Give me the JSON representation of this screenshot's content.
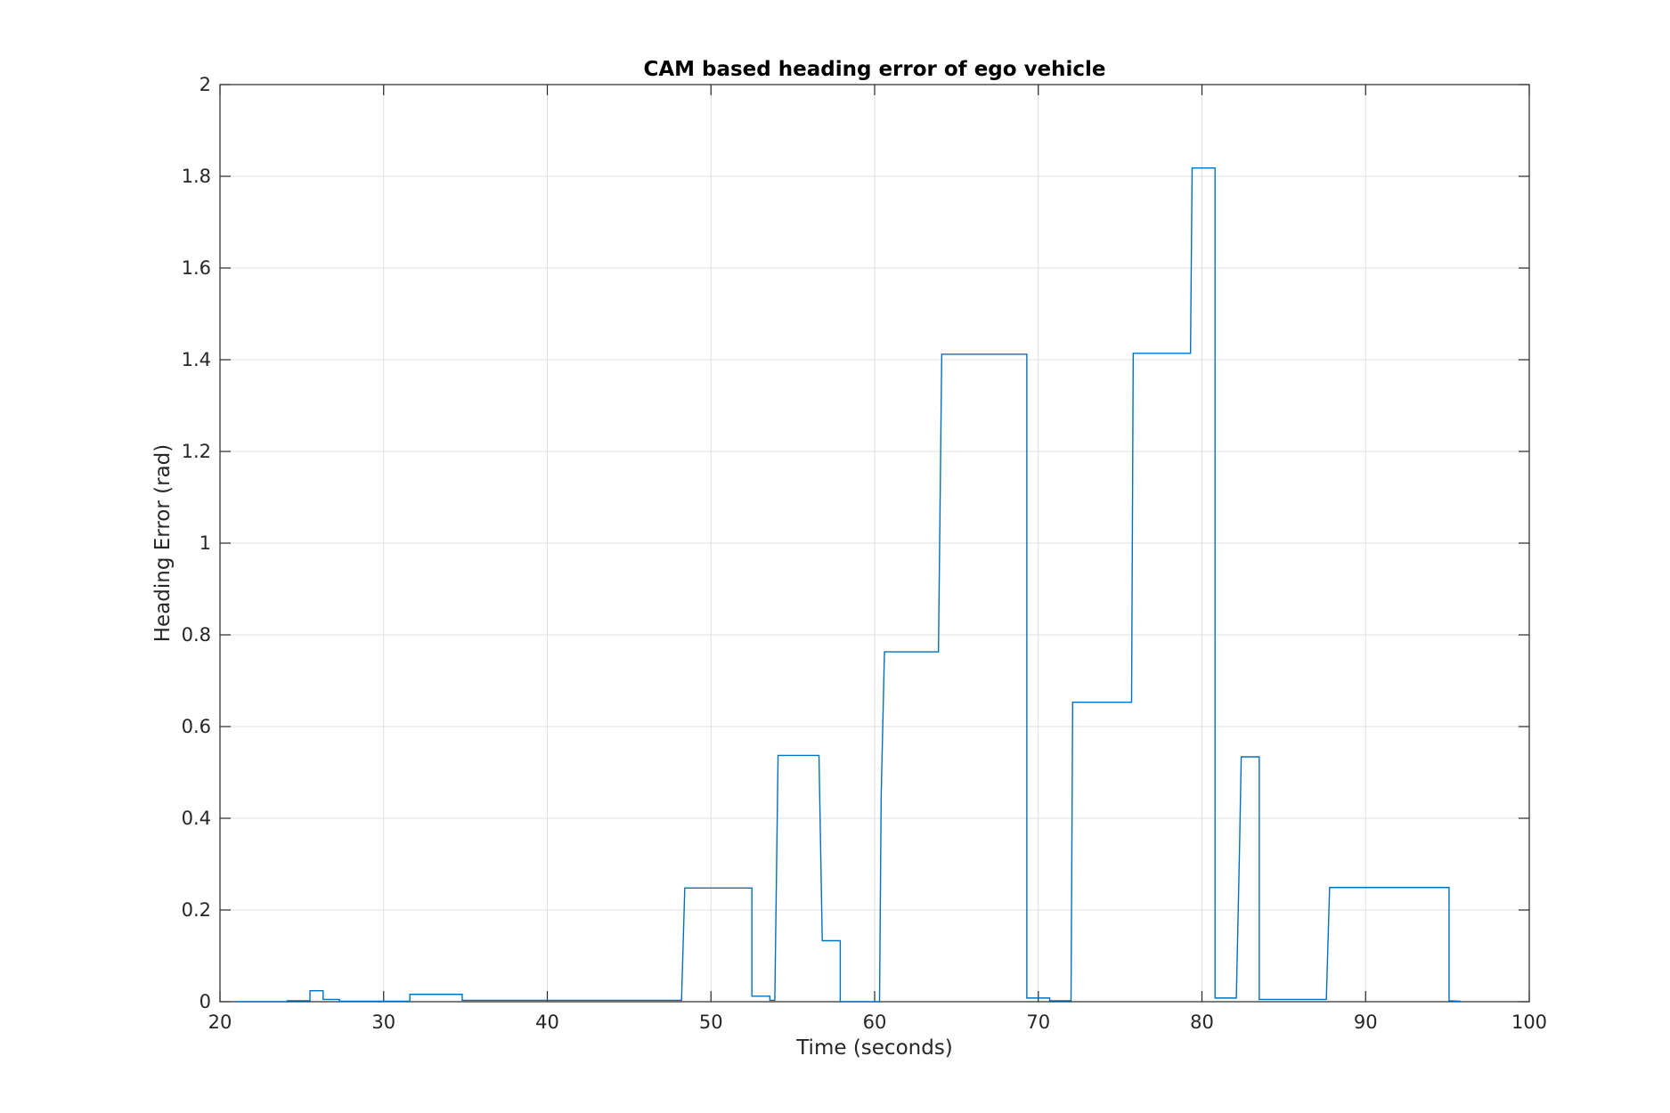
{
  "chart_data": {
    "type": "line",
    "title": "CAM based heading error of ego vehicle",
    "xlabel": "Time (seconds)",
    "ylabel": "Heading Error (rad)",
    "xlim": [
      20,
      100
    ],
    "ylim": [
      0,
      2
    ],
    "xticks": [
      20,
      30,
      40,
      50,
      60,
      70,
      80,
      90,
      100
    ],
    "yticks": [
      0,
      0.2,
      0.4,
      0.6,
      0.8,
      1,
      1.2,
      1.4,
      1.6,
      1.8,
      2
    ],
    "xtick_labels": [
      "20",
      "30",
      "40",
      "50",
      "60",
      "70",
      "80",
      "90",
      "100"
    ],
    "ytick_labels": [
      "0",
      "0.2",
      "0.4",
      "0.6",
      "0.8",
      "1",
      "1.2",
      "1.4",
      "1.6",
      "1.8",
      "2"
    ],
    "grid": true,
    "line_color": "#0072BD",
    "series": [
      {
        "x": [
          21,
          24.1,
          24.1,
          25.5,
          25.5,
          26.3,
          26.3,
          27.3,
          27.3,
          31.6,
          31.6,
          34.8,
          34.8,
          48.2,
          48.4,
          52.5,
          52.5,
          53.6,
          53.6,
          53.9,
          54.1,
          56.6,
          56.8,
          57.9,
          57.9,
          60.3,
          60.4,
          60.6,
          60.6,
          63.9,
          64.1,
          69.3,
          69.3,
          70.7,
          70.7,
          72.0,
          72.1,
          75.7,
          75.8,
          79.3,
          79.4,
          80.8,
          80.8,
          82.1,
          82.3,
          82.4,
          83.5,
          83.5,
          87.6,
          87.8,
          95.1,
          95.1,
          95.8
        ],
        "y": [
          0,
          0,
          0.002,
          0.002,
          0.024,
          0.024,
          0.005,
          0.005,
          0.001,
          0.001,
          0.016,
          0.016,
          0.003,
          0.003,
          0.248,
          0.248,
          0.012,
          0.012,
          0.003,
          0.003,
          0.537,
          0.537,
          0.133,
          0.133,
          0,
          0,
          0.45,
          0.763,
          0.763,
          0.763,
          1.412,
          1.412,
          0.008,
          0.008,
          0.002,
          0.002,
          0.653,
          0.653,
          1.414,
          1.414,
          1.818,
          1.818,
          0.008,
          0.008,
          0.34,
          0.534,
          0.534,
          0.005,
          0.005,
          0.249,
          0.249,
          0.002,
          0.001
        ]
      }
    ]
  }
}
